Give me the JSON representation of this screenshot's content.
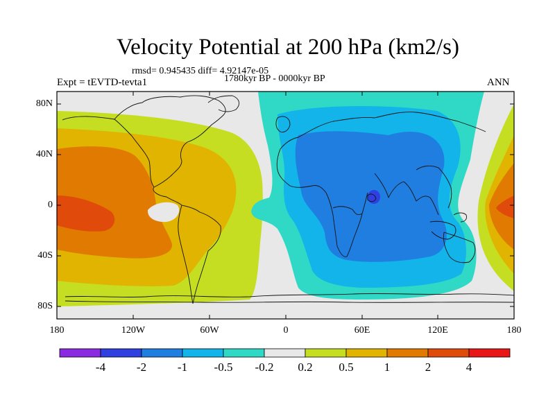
{
  "title": "Velocity Potential at 200 hPa (km2/s)",
  "stats_line": "rmsd= 0.945435  diff= 4.92147e-05",
  "period_line": "1780kyr BP - 0000kyr BP",
  "experiment_label": "Expt = tEVTD-tevta1",
  "season_label": "ANN",
  "axes": {
    "lat_labels": [
      "80N",
      "40N",
      "0",
      "40S",
      "80S"
    ],
    "lon_labels": [
      "180",
      "120W",
      "60W",
      "0",
      "60E",
      "120E",
      "180"
    ]
  },
  "colorbar": {
    "labels": [
      "-4",
      "-2",
      "-1",
      "-0.5",
      "-0.2",
      "0.2",
      "0.5",
      "1",
      "2",
      "4"
    ],
    "colors": [
      "#8a2be2",
      "#2f3fe0",
      "#1f7ee0",
      "#12b4ea",
      "#2fd9c5",
      "#e8e8e8",
      "#c6de22",
      "#e0b400",
      "#e07a00",
      "#e04a0a",
      "#e81616"
    ]
  },
  "field_colors": {
    "border": "#000000",
    "coast": "#111111"
  }
}
